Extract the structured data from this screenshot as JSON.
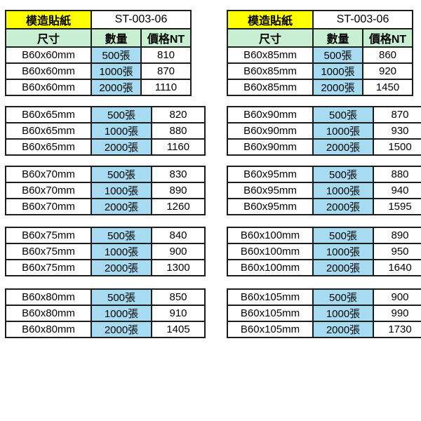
{
  "colors": {
    "header_yellow": "#ffff00",
    "header_green": "#c9efd3",
    "qty_blue": "#a6dbf1",
    "border": "#1c1c1c",
    "text": "#000000",
    "background": "#ffffff"
  },
  "tables": [
    {
      "product_label": "模造貼紙",
      "product_code": "ST-003-06",
      "columns": [
        "尺寸",
        "數量",
        "價格NT"
      ],
      "groups": [
        {
          "rows": [
            [
              "B60x60mm",
              "500張",
              "810"
            ],
            [
              "B60x60mm",
              "1000張",
              "870"
            ],
            [
              "B60x60mm",
              "2000張",
              "1110"
            ]
          ]
        },
        {
          "rows": [
            [
              "B60x65mm",
              "500張",
              "820"
            ],
            [
              "B60x65mm",
              "1000張",
              "880"
            ],
            [
              "B60x65mm",
              "2000張",
              "1160"
            ]
          ]
        },
        {
          "rows": [
            [
              "B60x70mm",
              "500張",
              "830"
            ],
            [
              "B60x70mm",
              "1000張",
              "890"
            ],
            [
              "B60x70mm",
              "2000張",
              "1260"
            ]
          ]
        },
        {
          "rows": [
            [
              "B60x75mm",
              "500張",
              "840"
            ],
            [
              "B60x75mm",
              "1000張",
              "900"
            ],
            [
              "B60x75mm",
              "2000張",
              "1300"
            ]
          ]
        },
        {
          "rows": [
            [
              "B60x80mm",
              "500張",
              "850"
            ],
            [
              "B60x80mm",
              "1000張",
              "910"
            ],
            [
              "B60x80mm",
              "2000張",
              "1405"
            ]
          ]
        }
      ]
    },
    {
      "product_label": "模造貼紙",
      "product_code": "ST-003-06",
      "columns": [
        "尺寸",
        "數量",
        "價格NT"
      ],
      "groups": [
        {
          "rows": [
            [
              "B60x85mm",
              "500張",
              "860"
            ],
            [
              "B60x85mm",
              "1000張",
              "920"
            ],
            [
              "B60x85mm",
              "2000張",
              "1450"
            ]
          ]
        },
        {
          "rows": [
            [
              "B60x90mm",
              "500張",
              "870"
            ],
            [
              "B60x90mm",
              "1000張",
              "930"
            ],
            [
              "B60x90mm",
              "2000張",
              "1500"
            ]
          ]
        },
        {
          "rows": [
            [
              "B60x95mm",
              "500張",
              "880"
            ],
            [
              "B60x95mm",
              "1000張",
              "940"
            ],
            [
              "B60x95mm",
              "2000張",
              "1595"
            ]
          ]
        },
        {
          "rows": [
            [
              "B60x100mm",
              "500張",
              "890"
            ],
            [
              "B60x100mm",
              "1000張",
              "950"
            ],
            [
              "B60x100mm",
              "2000張",
              "1640"
            ]
          ]
        },
        {
          "rows": [
            [
              "B60x105mm",
              "500張",
              "900"
            ],
            [
              "B60x105mm",
              "1000張",
              "990"
            ],
            [
              "B60x105mm",
              "2000張",
              "1730"
            ]
          ]
        }
      ]
    }
  ]
}
